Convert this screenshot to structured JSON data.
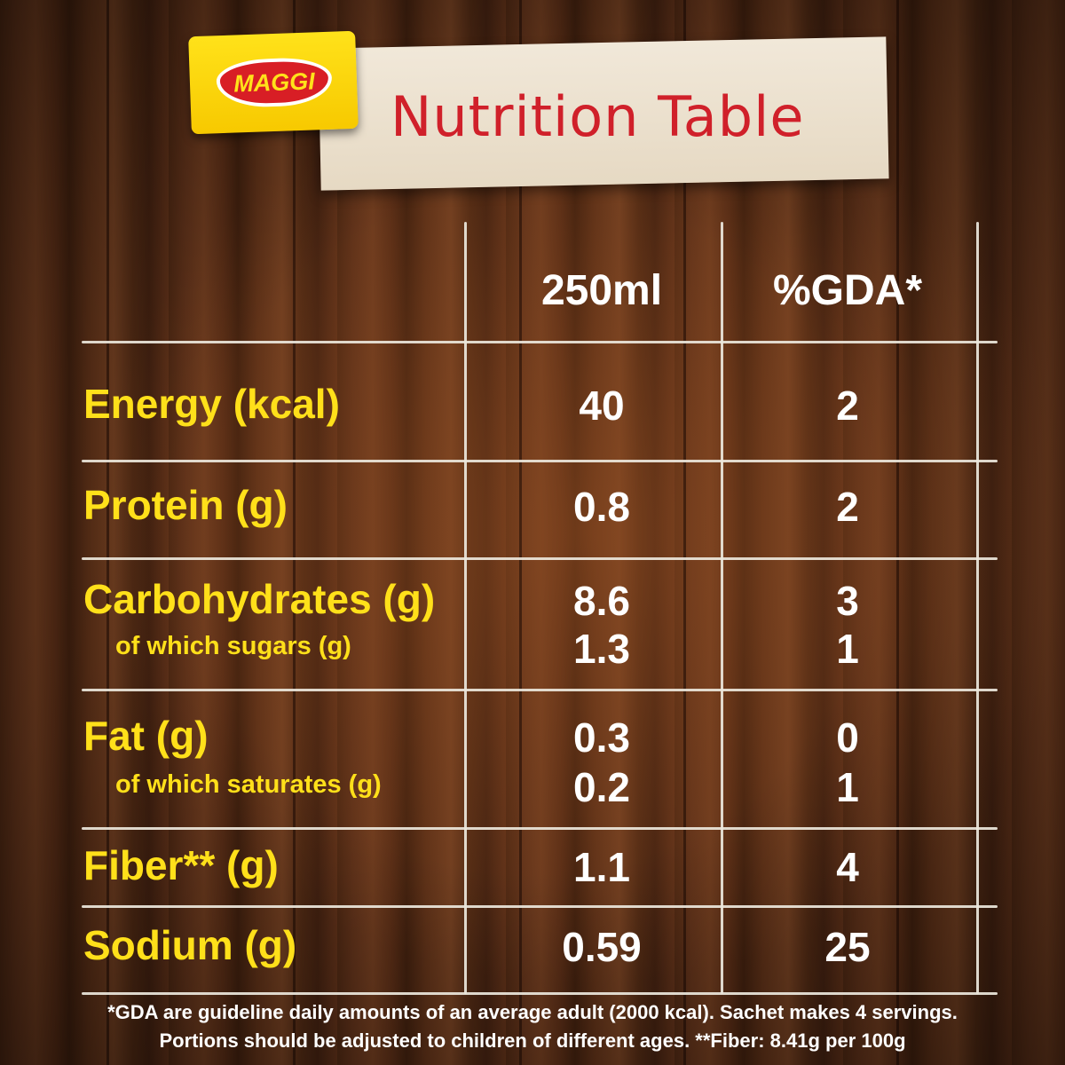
{
  "brand": {
    "logo_text": "MAGGI"
  },
  "header": {
    "title": "Nutrition Table"
  },
  "columns": {
    "amount": "250ml",
    "gda": "%GDA*"
  },
  "rows": {
    "energy": {
      "label": "Energy (kcal)",
      "amount": "40",
      "gda": "2"
    },
    "protein": {
      "label": "Protein (g)",
      "amount": "0.8",
      "gda": "2"
    },
    "carbs": {
      "label": "Carbohydrates (g)",
      "amount": "8.6",
      "gda": "3"
    },
    "sugars": {
      "label": "of which sugars (g)",
      "amount": "1.3",
      "gda": "1"
    },
    "fat": {
      "label": "Fat (g)",
      "amount": "0.3",
      "gda": "0"
    },
    "saturates": {
      "label": "of which saturates (g)",
      "amount": "0.2",
      "gda": "1"
    },
    "fiber": {
      "label": "Fiber** (g)",
      "amount": "1.1",
      "gda": "4"
    },
    "sodium": {
      "label": "Sodium (g)",
      "amount": "0.59",
      "gda": "25"
    }
  },
  "footnotes": {
    "line1": "*GDA are guideline daily amounts of an average adult (2000 kcal). Sachet makes 4 servings.",
    "line2": "Portions should be adjusted to children of different ages. **Fiber: 8.41g per 100g"
  },
  "colors": {
    "label_yellow": "#ffe01a",
    "title_red": "#d0202a",
    "logo_yellow": "#ffe21a",
    "logo_red": "#d81e25",
    "wood_brown": "#5c3019"
  }
}
